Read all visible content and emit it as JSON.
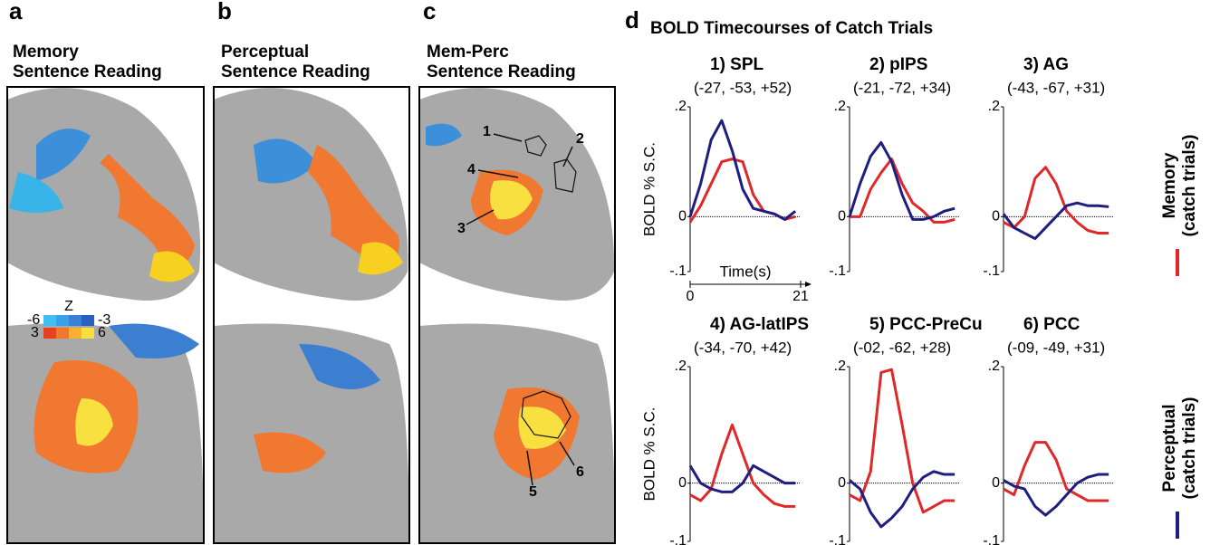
{
  "panels": [
    {
      "letter": "a",
      "title": [
        "Memory",
        "Sentence Reading"
      ]
    },
    {
      "letter": "b",
      "title": [
        "Perceptual",
        "Sentence Reading"
      ]
    },
    {
      "letter": "c",
      "title": [
        "Mem-Perc",
        "Sentence Reading"
      ]
    }
  ],
  "colorbar": {
    "title": "Z",
    "neg": [
      "-6",
      "-3"
    ],
    "pos": [
      "3",
      "6"
    ]
  },
  "roi_labels": [
    "1",
    "2",
    "3",
    "4",
    "5",
    "6"
  ],
  "section": {
    "letter": "d",
    "title": "BOLD Timecourses of Catch Trials"
  },
  "legend": [
    {
      "label": "Memory",
      "note": "(catch trials)",
      "color": "#e02828"
    },
    {
      "label": "Perceptual",
      "note": "(catch trials)",
      "color": "#1e1e80"
    }
  ],
  "chart_data": [
    {
      "type": "line",
      "title": "1) SPL",
      "subtitle": "(-27, -53, +52)",
      "ylabel": "BOLD % S.C.",
      "xlabel": "Time(s)",
      "x": [
        0,
        2,
        4,
        6,
        8,
        10,
        12,
        14,
        16,
        18,
        20
      ],
      "xlim": [
        0,
        21
      ],
      "xticks": [
        0,
        21
      ],
      "ylim": [
        -0.1,
        0.2
      ],
      "yticks": [
        {
          "value": 0.2,
          "label": ".2"
        },
        0,
        {
          "value": -0.1,
          "label": "-.1"
        }
      ],
      "series": [
        {
          "color": "#e02828",
          "values": [
            -0.01,
            0.02,
            0.06,
            0.1,
            0.105,
            0.1,
            0.04,
            0.01,
            0.005,
            -0.005,
            0.0
          ]
        },
        {
          "color": "#1e1e80",
          "values": [
            0.0,
            0.06,
            0.14,
            0.175,
            0.12,
            0.05,
            0.015,
            0.01,
            0.005,
            -0.005,
            0.01
          ]
        }
      ]
    },
    {
      "type": "line",
      "title": "2) pIPS",
      "subtitle": "(-21, -72, +34)",
      "x": [
        0,
        2,
        4,
        6,
        8,
        10,
        12,
        14,
        16,
        18,
        20
      ],
      "xlim": [
        0,
        21
      ],
      "ylim": [
        -0.1,
        0.2
      ],
      "yticks": [
        {
          "value": 0.2,
          "label": ".2"
        },
        0,
        {
          "value": -0.1,
          "label": "-.1"
        }
      ],
      "series": [
        {
          "color": "#e02828",
          "values": [
            0.0,
            0.0,
            0.05,
            0.08,
            0.105,
            0.06,
            0.025,
            0.01,
            -0.01,
            -0.01,
            -0.005
          ]
        },
        {
          "color": "#1e1e80",
          "values": [
            0.0,
            0.06,
            0.11,
            0.135,
            0.1,
            0.04,
            -0.005,
            -0.005,
            0.0,
            0.01,
            0.015
          ]
        }
      ]
    },
    {
      "type": "line",
      "title": "3) AG",
      "subtitle": "(-43, -67, +31)",
      "x": [
        0,
        2,
        4,
        6,
        8,
        10,
        12,
        14,
        16,
        18,
        20
      ],
      "xlim": [
        0,
        21
      ],
      "ylim": [
        -0.1,
        0.2
      ],
      "yticks": [
        {
          "value": 0.2,
          "label": ".2"
        },
        0,
        {
          "value": -0.1,
          "label": "-.1"
        }
      ],
      "series": [
        {
          "color": "#e02828",
          "values": [
            -0.01,
            -0.02,
            0.0,
            0.07,
            0.09,
            0.06,
            0.01,
            -0.01,
            -0.025,
            -0.03,
            -0.03
          ]
        },
        {
          "color": "#1e1e80",
          "values": [
            0.005,
            -0.02,
            -0.03,
            -0.04,
            -0.02,
            0.0,
            0.02,
            0.025,
            0.02,
            0.02,
            0.018
          ]
        }
      ]
    },
    {
      "type": "line",
      "title": "4) AG-latIPS",
      "subtitle": "(-34, -70, +42)",
      "ylabel": "BOLD % S.C.",
      "x": [
        0,
        2,
        4,
        6,
        8,
        10,
        12,
        14,
        16,
        18,
        20
      ],
      "xlim": [
        0,
        21
      ],
      "ylim": [
        -0.1,
        0.2
      ],
      "yticks": [
        {
          "value": 0.2,
          "label": ".2"
        },
        0,
        {
          "value": -0.1,
          "label": "-.1"
        }
      ],
      "series": [
        {
          "color": "#e02828",
          "values": [
            -0.02,
            -0.03,
            -0.01,
            0.05,
            0.1,
            0.05,
            0.0,
            -0.02,
            -0.035,
            -0.04,
            -0.04
          ]
        },
        {
          "color": "#1e1e80",
          "values": [
            0.03,
            0.0,
            -0.01,
            -0.015,
            -0.015,
            0.0,
            0.03,
            0.02,
            0.01,
            0.0,
            0.0
          ]
        }
      ]
    },
    {
      "type": "line",
      "title": "5) PCC-PreCu",
      "subtitle": "(-02, -62, +28)",
      "x": [
        0,
        2,
        4,
        6,
        8,
        10,
        12,
        14,
        16,
        18,
        20
      ],
      "xlim": [
        0,
        21
      ],
      "ylim": [
        -0.1,
        0.2
      ],
      "yticks": [
        {
          "value": 0.2,
          "label": ".2"
        },
        0,
        {
          "value": -0.1,
          "label": "-.1"
        }
      ],
      "series": [
        {
          "color": "#e02828",
          "values": [
            -0.02,
            -0.03,
            0.02,
            0.19,
            0.195,
            0.1,
            0.0,
            -0.05,
            -0.04,
            -0.03,
            -0.03
          ]
        },
        {
          "color": "#1e1e80",
          "values": [
            0.005,
            -0.01,
            -0.05,
            -0.075,
            -0.06,
            -0.04,
            -0.01,
            0.01,
            0.02,
            0.015,
            0.015
          ]
        }
      ]
    },
    {
      "type": "line",
      "title": "6) PCC",
      "subtitle": "(-09, -49, +31)",
      "x": [
        0,
        2,
        4,
        6,
        8,
        10,
        12,
        14,
        16,
        18,
        20
      ],
      "xlim": [
        0,
        21
      ],
      "ylim": [
        -0.1,
        0.2
      ],
      "yticks": [
        {
          "value": 0.2,
          "label": ".2"
        },
        0,
        {
          "value": -0.1,
          "label": "-.1"
        }
      ],
      "series": [
        {
          "color": "#e02828",
          "values": [
            -0.01,
            -0.02,
            0.03,
            0.07,
            0.07,
            0.04,
            -0.01,
            -0.02,
            -0.03,
            -0.03,
            -0.03
          ]
        },
        {
          "color": "#1e1e80",
          "values": [
            0.005,
            -0.005,
            -0.01,
            -0.04,
            -0.055,
            -0.04,
            -0.02,
            0.0,
            0.01,
            0.015,
            0.015
          ]
        }
      ]
    }
  ]
}
